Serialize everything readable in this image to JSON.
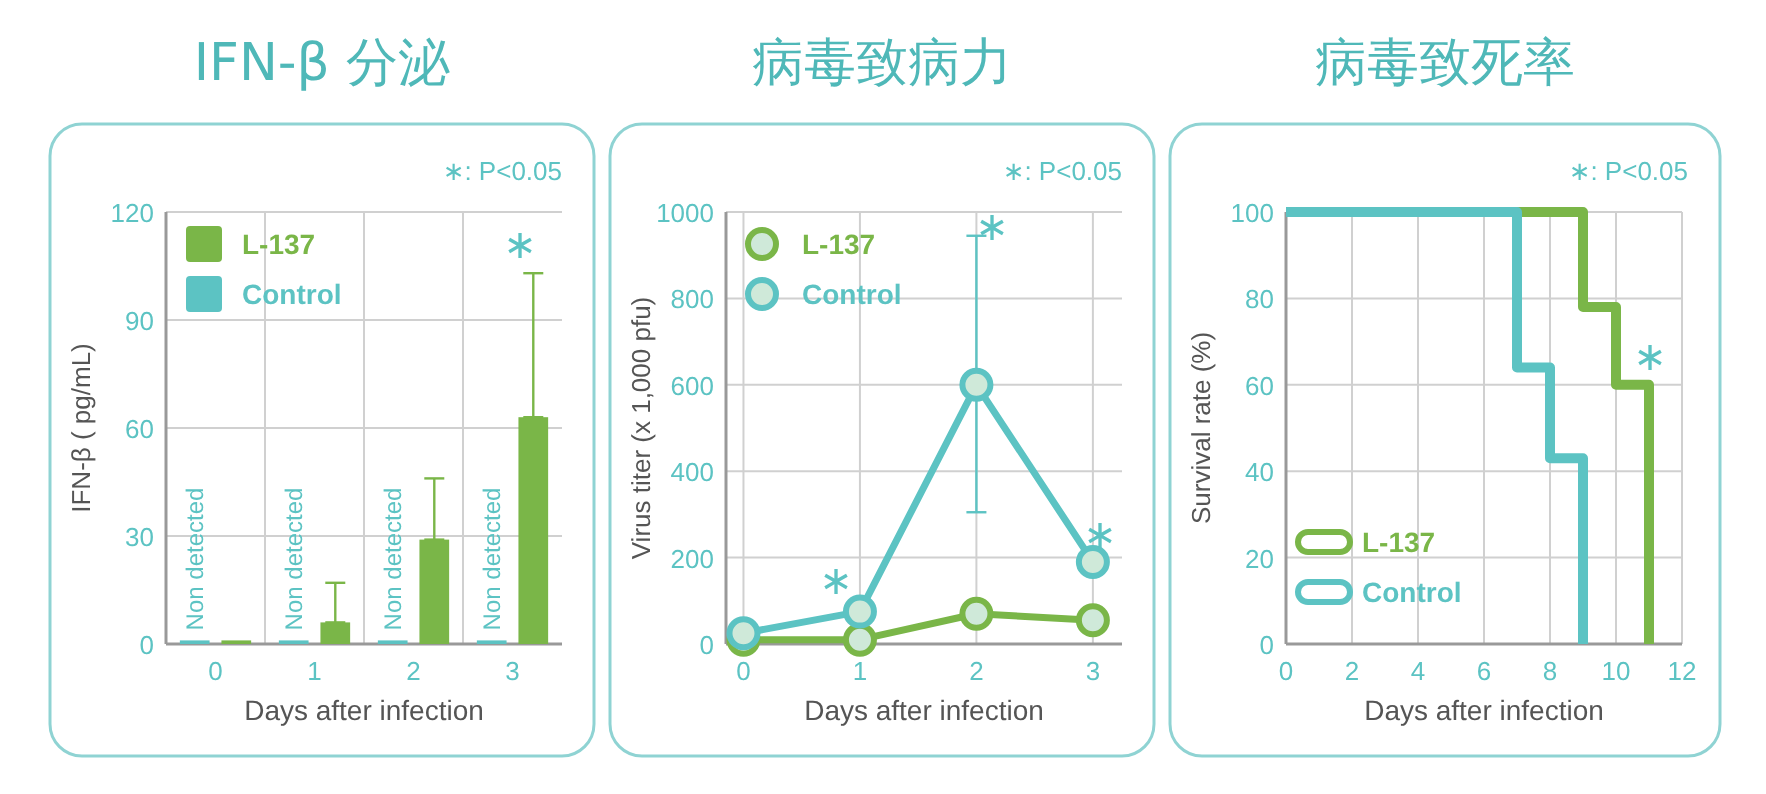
{
  "chart_data": [
    {
      "type": "bar",
      "title": "IFN-β 分泌",
      "xlabel": "Days after infection",
      "ylabel": "IFN-β ( pg/mL)",
      "categories": [
        "0",
        "1",
        "2",
        "3"
      ],
      "ylim": [
        0,
        120
      ],
      "yticks": [
        0,
        30,
        60,
        90,
        120
      ],
      "grid": true,
      "legend": "top left",
      "series": [
        {
          "name": "Control",
          "color": "#5cc3c3",
          "values": [
            1,
            1,
            1,
            1
          ],
          "value_labels": [
            "Non detected",
            "Non detected",
            "Non detected",
            "Non detected"
          ]
        },
        {
          "name": "L-137",
          "color": "#7ab648",
          "values": [
            1,
            6,
            29,
            63
          ],
          "errors": [
            null,
            [
              6,
              17
            ],
            [
              29,
              46
            ],
            [
              63,
              103
            ]
          ]
        }
      ],
      "annotations": [
        "∗: P<0.05",
        "∗"
      ]
    },
    {
      "type": "line",
      "title": "病毒致病力",
      "xlabel": "Days after infection",
      "ylabel": "Virus titer (x 1,000 pfu)",
      "x": [
        0,
        1,
        2,
        3
      ],
      "xlim": [
        -0.15,
        3.25
      ],
      "xticks": [
        0,
        1,
        2,
        3
      ],
      "ylim": [
        0,
        1000
      ],
      "yticks": [
        0,
        200,
        400,
        600,
        800,
        1000
      ],
      "grid": true,
      "legend": "top left",
      "marker": "circle",
      "series": [
        {
          "name": "L-137",
          "color": "#7ab648",
          "values": [
            10,
            10,
            70,
            55
          ]
        },
        {
          "name": "Control",
          "color": "#5cc3c3",
          "values": [
            25,
            75,
            600,
            190
          ],
          "errors": [
            null,
            null,
            [
              305,
              945
            ],
            null
          ]
        }
      ],
      "annotations": [
        "∗: P<0.05",
        "∗",
        "∗",
        "∗"
      ]
    },
    {
      "type": "step",
      "title": "病毒致死率",
      "xlabel": "Days after infection",
      "ylabel": "Survival rate (%)",
      "xlim": [
        0,
        12
      ],
      "xticks": [
        0,
        2,
        4,
        6,
        8,
        10,
        12
      ],
      "ylim": [
        0,
        100
      ],
      "yticks": [
        0,
        20,
        40,
        60,
        80,
        100
      ],
      "grid": true,
      "legend": "bottom left",
      "series": [
        {
          "name": "L-137",
          "color": "#7ab648",
          "x": [
            0,
            9,
            10,
            11
          ],
          "values": [
            100,
            78,
            60,
            0
          ]
        },
        {
          "name": "Control",
          "color": "#5cc3c3",
          "x": [
            0,
            7,
            8,
            9
          ],
          "values": [
            100,
            64,
            43,
            0
          ]
        }
      ],
      "annotations": [
        "∗: P<0.05",
        "∗"
      ]
    }
  ]
}
